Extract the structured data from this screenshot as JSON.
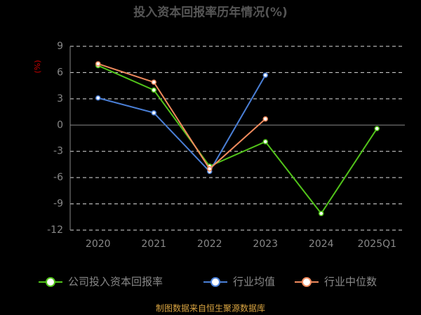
{
  "chart_data": {
    "type": "line",
    "title": "投入资本回报率历年情况(%)",
    "y_label": "(%)",
    "categories": [
      "2020",
      "2021",
      "2022",
      "2023",
      "2024",
      "2025Q1"
    ],
    "series": [
      {
        "name": "公司投入资本回报率",
        "color": "#52c41a",
        "values": [
          6.8,
          4.0,
          -4.7,
          -1.9,
          -10.1,
          -0.4
        ]
      },
      {
        "name": "行业均值",
        "color": "#4a7fd6",
        "values": [
          3.1,
          1.4,
          -5.3,
          5.7,
          null,
          null
        ]
      },
      {
        "name": "行业中位数",
        "color": "#f08a5d",
        "values": [
          7.0,
          4.9,
          -5.0,
          0.7,
          null,
          null
        ]
      }
    ],
    "ylim": [
      -12,
      9
    ],
    "yticks": [
      -12,
      -9,
      -6,
      -3,
      0,
      3,
      6,
      9
    ],
    "grid": true,
    "source": "制图数据来自恒生聚源数据库"
  }
}
